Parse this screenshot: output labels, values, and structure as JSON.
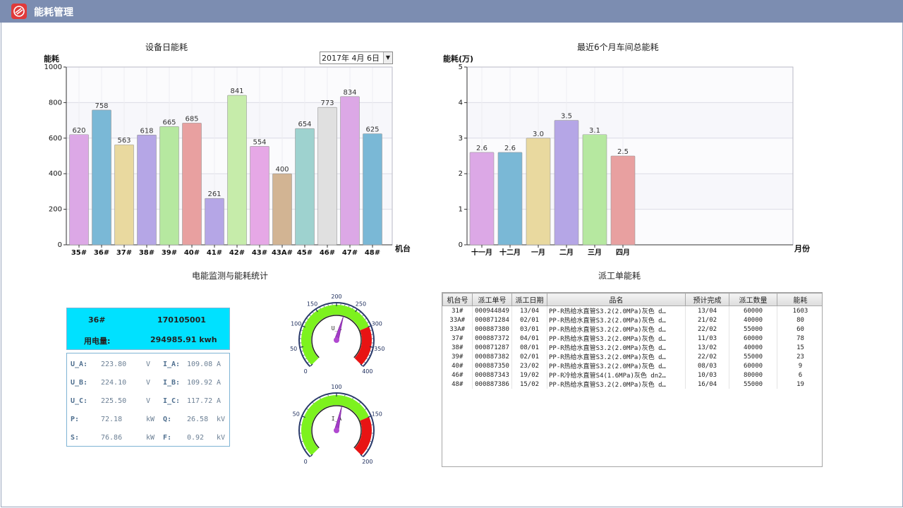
{
  "window": {
    "title": "能耗管理"
  },
  "daily_chart": {
    "title": "设备日能耗",
    "date_value": "2017年  4月  6日",
    "chart_data": {
      "type": "bar",
      "title": "设备日能耗",
      "ylabel": "能耗",
      "xlabel": "机台",
      "ylim": [
        0,
        1000
      ],
      "yticks": [
        0,
        200,
        400,
        600,
        800,
        1000
      ],
      "grid": true,
      "categories": [
        "35#",
        "36#",
        "37#",
        "38#",
        "39#",
        "40#",
        "41#",
        "42#",
        "43#",
        "43A#",
        "45#",
        "46#",
        "47#",
        "48#"
      ],
      "values": [
        620,
        758,
        563,
        618,
        665,
        685,
        261,
        841,
        554,
        400,
        654,
        773,
        834,
        625
      ],
      "colors": [
        "#dca8e6",
        "#7ab8d6",
        "#e9d99f",
        "#b5a6e6",
        "#b6e8a0",
        "#e8a0a0",
        "#b5a6e6",
        "#c6ecaa",
        "#e6a8e6",
        "#d2b493",
        "#9ed2cf",
        "#e0e0e0",
        "#dca8e6",
        "#7ab8d6"
      ]
    }
  },
  "monthly_chart": {
    "title": "最近6个月车间总能耗",
    "chart_data": {
      "type": "bar",
      "title": "最近6个月车间总能耗",
      "ylabel": "能耗(万)",
      "xlabel": "月份",
      "ylim": [
        0,
        5
      ],
      "yticks": [
        0,
        1,
        2,
        3,
        4,
        5
      ],
      "grid": true,
      "categories": [
        "十一月",
        "十二月",
        "一月",
        "二月",
        "三月",
        "四月"
      ],
      "values": [
        2.6,
        2.6,
        3.0,
        3.5,
        3.1,
        2.5
      ],
      "value_labels": [
        "2.6",
        "2.6",
        "3.0",
        "3.5",
        "3.1",
        "2.5"
      ],
      "colors": [
        "#dca8e6",
        "#7ab8d6",
        "#e9d99f",
        "#b5a6e6",
        "#b6e8a0",
        "#e8a0a0"
      ]
    }
  },
  "monitor": {
    "title": "电能监测与能耗统计",
    "machine": "36#",
    "order_no": "170105001",
    "energy_label": "用电量:",
    "energy_value": "294985.91 kwh",
    "rows": [
      {
        "l1": "U_A:",
        "v1": "223.80",
        "u1": "V",
        "l2": "I_A:",
        "v2": "109.08",
        "u2": "A"
      },
      {
        "l1": "U_B:",
        "v1": "224.10",
        "u1": "V",
        "l2": "I_B:",
        "v2": "109.92",
        "u2": "A"
      },
      {
        "l1": "U_C:",
        "v1": "225.50",
        "u1": "V",
        "l2": "I_C:",
        "v2": "117.72",
        "u2": "A"
      },
      {
        "l1": "P:",
        "v1": "72.18",
        "u1": "kW",
        "l2": "Q:",
        "v2": "26.58",
        "u2": "kV"
      },
      {
        "l1": "S:",
        "v1": "76.86",
        "u1": "kW",
        "l2": "F:",
        "v2": "0.92",
        "u2": "kV"
      }
    ]
  },
  "gauges": [
    {
      "label": "U_A",
      "min": 0,
      "max": 400,
      "ticks": [
        "0",
        "50",
        "100",
        "150",
        "200",
        "250",
        "300",
        "350",
        "400"
      ],
      "red_from": 300,
      "value": 223.8
    },
    {
      "label": "I_A",
      "min": 0,
      "max": 200,
      "ticks": [
        "0",
        "50",
        "100",
        "150",
        "200"
      ],
      "red_from": 150,
      "value": 109.08
    }
  ],
  "work_orders": {
    "title": "派工单能耗",
    "columns": [
      "机台号",
      "派工单号",
      "派工日期",
      "品名",
      "预计完成",
      "派工数量",
      "能耗"
    ],
    "rows": [
      [
        "31#",
        "000944849",
        "13/04",
        "PP-R热给水直管S3.2(2.0MPa)灰色 d…",
        "13/04",
        "60000",
        "1603"
      ],
      [
        "33A#",
        "000871284",
        "02/01",
        "PP-R热给水直管S3.2(2.0MPa)灰色 d…",
        "21/02",
        "40000",
        "80"
      ],
      [
        "33A#",
        "000887380",
        "03/01",
        "PP-R热给水直管S3.2(2.0MPa)灰色 d…",
        "22/02",
        "55000",
        "60"
      ],
      [
        "37#",
        "000887372",
        "04/01",
        "PP-R热给水直管S3.2(2.0MPa)灰色 d…",
        "11/03",
        "60000",
        "78"
      ],
      [
        "38#",
        "000871287",
        "08/01",
        "PP-R热给水直管S3.2(2.0MPa)灰色 d…",
        "13/02",
        "40000",
        "15"
      ],
      [
        "39#",
        "000887382",
        "02/01",
        "PP-R热给水直管S3.2(2.0MPa)灰色 d…",
        "22/02",
        "55000",
        "23"
      ],
      [
        "40#",
        "000887350",
        "23/02",
        "PP-R热给水直管S3.2(2.0MPa)灰色 d…",
        "08/03",
        "60000",
        "9"
      ],
      [
        "46#",
        "000887343",
        "19/02",
        "PP-R冷给水直管S4(1.6MPa)灰色 dn2…",
        "10/03",
        "80000",
        "6"
      ],
      [
        "48#",
        "000887386",
        "15/02",
        "PP-R热给水直管S3.2(2.0MPa)灰色 d…",
        "16/04",
        "55000",
        "19"
      ]
    ]
  }
}
